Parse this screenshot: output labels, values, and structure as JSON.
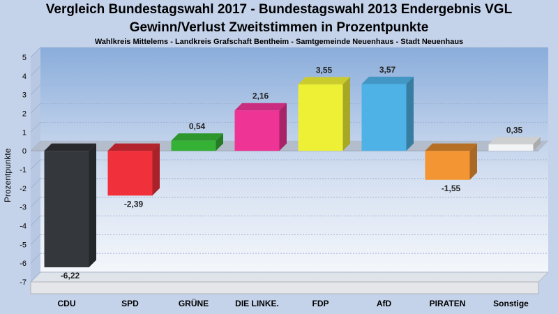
{
  "chart_data": {
    "type": "bar",
    "title": "Vergleich Bundestagswahl 2017 - Bundestagswahl 2013 Endergebnis VGL",
    "title2": "Gewinn/Verlust Zweitstimmen in Prozentpunkte",
    "subtitle": "Wahlkreis Mittelems - Landkreis Grafschaft Bentheim - Samtgemeinde Neuenhaus - Stadt Neuenhaus",
    "xlabel": "",
    "ylabel": "Prozentpunkte",
    "ylim": [
      -7,
      5
    ],
    "yticks": [
      "5",
      "4",
      "3",
      "2",
      "1",
      "0",
      "-1",
      "-2",
      "-3",
      "-4",
      "-5",
      "-6",
      "-7"
    ],
    "grid": true,
    "categories": [
      "CDU",
      "SPD",
      "GRÜNE",
      "DIE LINKE.",
      "FDP",
      "AfD",
      "PIRATEN",
      "Sonstige"
    ],
    "values": [
      -6.22,
      -2.39,
      0.54,
      2.16,
      3.55,
      3.57,
      -1.55,
      0.35
    ],
    "value_labels": [
      "-6,22",
      "-2,39",
      "0,54",
      "2,16",
      "3,55",
      "3,57",
      "-1,55",
      "0,35"
    ],
    "colors": [
      "#34373c",
      "#f0303a",
      "#35b135",
      "#ee3495",
      "#eef035",
      "#4fb2e6",
      "#f29532",
      "#f2f4f5"
    ]
  }
}
